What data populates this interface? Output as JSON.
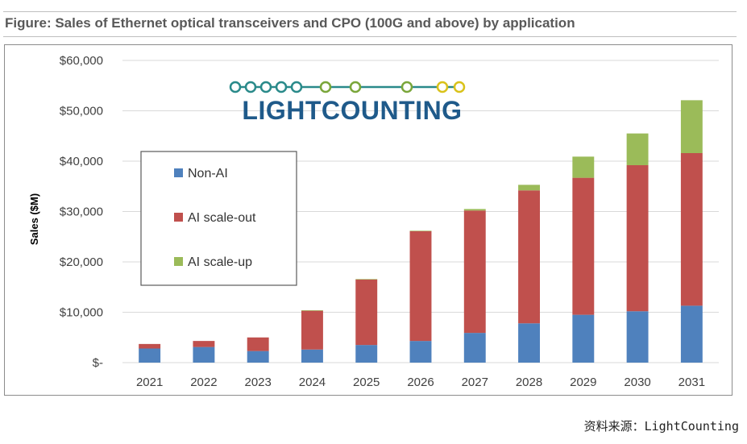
{
  "figure_title": "Figure: Sales of Ethernet optical transceivers and CPO (100G and above) by application",
  "logo_text": "LIGHTCOUNTING",
  "source_text": "资料来源：LightCounting",
  "colors": {
    "non_ai": "#4f81bd",
    "ai_scale_out": "#c0504d",
    "ai_scale_up": "#9bbb59",
    "grid": "#d9d9d9",
    "axis_text": "#404040",
    "logo_blue": "#1f5a8a",
    "logo_teal": "#2a8a8a",
    "logo_green": "#7aa63a",
    "logo_yellow": "#d9c21a"
  },
  "chart_data": {
    "type": "bar",
    "stacked": true,
    "title": "Sales of Ethernet optical transceivers and CPO (100G and above) by application",
    "xlabel": "",
    "ylabel": "Sales ($M)",
    "ylim": [
      0,
      60000
    ],
    "yticks": [
      0,
      10000,
      20000,
      30000,
      40000,
      50000,
      60000
    ],
    "ytick_labels": [
      "$-",
      "$10,000",
      "$20,000",
      "$30,000",
      "$40,000",
      "$50,000",
      "$60,000"
    ],
    "grid": true,
    "legend_position": "upper-left",
    "categories": [
      "2021",
      "2022",
      "2023",
      "2024",
      "2025",
      "2026",
      "2027",
      "2028",
      "2029",
      "2030",
      "2031"
    ],
    "series": [
      {
        "name": "Non-AI",
        "color": "#4f81bd",
        "values": [
          2800,
          3100,
          2300,
          2600,
          3500,
          4300,
          5900,
          7800,
          9500,
          10200,
          11300
        ]
      },
      {
        "name": "AI scale-out",
        "color": "#c0504d",
        "values": [
          900,
          1200,
          2700,
          7700,
          13000,
          21800,
          24300,
          26400,
          27200,
          29000,
          30300
        ]
      },
      {
        "name": "AI scale-up",
        "color": "#9bbb59",
        "values": [
          0,
          0,
          0,
          100,
          100,
          100,
          300,
          1100,
          4200,
          6300,
          10500
        ]
      }
    ]
  }
}
